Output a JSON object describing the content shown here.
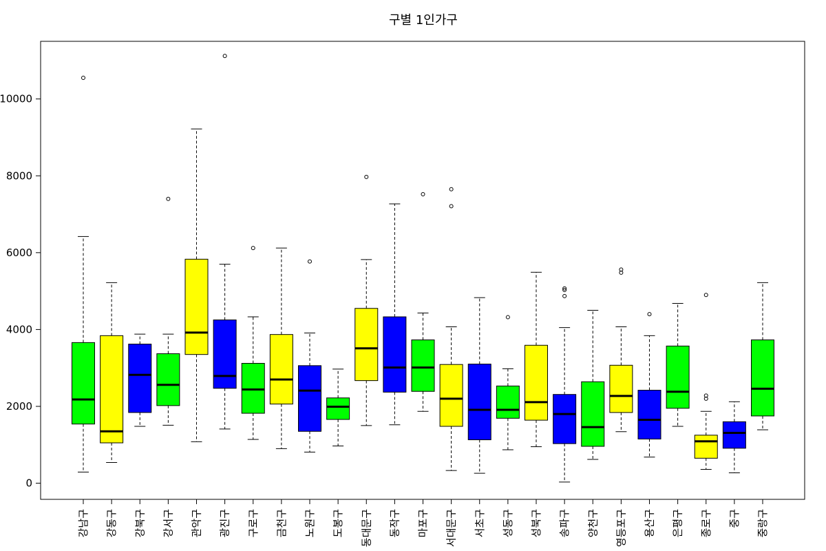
{
  "chart_data": {
    "type": "boxplot",
    "title": "구별 1인가구",
    "xlabel": "",
    "ylabel": "",
    "ylim": [
      -420,
      11500
    ],
    "yticks": [
      0,
      2000,
      4000,
      6000,
      8000,
      10000
    ],
    "grid": false,
    "categories": [
      "강남구",
      "강동구",
      "강북구",
      "강서구",
      "관악구",
      "광진구",
      "구로구",
      "금천구",
      "노원구",
      "도봉구",
      "동대문구",
      "동작구",
      "마포구",
      "서대문구",
      "서초구",
      "성동구",
      "성북구",
      "송파구",
      "양천구",
      "영등포구",
      "용산구",
      "은평구",
      "종로구",
      "중구",
      "중랑구"
    ],
    "colors": [
      "#00ff00",
      "#ffff00",
      "#0000ff"
    ],
    "series": [
      {
        "category": "강남구",
        "whisker_low": 290,
        "q1": 1540,
        "median": 2180,
        "q3": 3660,
        "whisker_high": 6420,
        "outliers": [
          10550
        ]
      },
      {
        "category": "강동구",
        "whisker_low": 540,
        "q1": 1050,
        "median": 1350,
        "q3": 3840,
        "whisker_high": 5220,
        "outliers": []
      },
      {
        "category": "강북구",
        "whisker_low": 1480,
        "q1": 1840,
        "median": 2820,
        "q3": 3620,
        "whisker_high": 3880,
        "outliers": []
      },
      {
        "category": "강서구",
        "whisker_low": 1510,
        "q1": 2020,
        "median": 2560,
        "q3": 3370,
        "whisker_high": 3880,
        "outliers": [
          7400
        ]
      },
      {
        "category": "관악구",
        "whisker_low": 1080,
        "q1": 3350,
        "median": 3920,
        "q3": 5830,
        "whisker_high": 9220,
        "outliers": []
      },
      {
        "category": "광진구",
        "whisker_low": 1410,
        "q1": 2470,
        "median": 2790,
        "q3": 4250,
        "whisker_high": 5700,
        "outliers": [
          11120
        ]
      },
      {
        "category": "구로구",
        "whisker_low": 1140,
        "q1": 1820,
        "median": 2440,
        "q3": 3120,
        "whisker_high": 4330,
        "outliers": [
          6120
        ]
      },
      {
        "category": "금천구",
        "whisker_low": 900,
        "q1": 2060,
        "median": 2700,
        "q3": 3870,
        "whisker_high": 6120,
        "outliers": []
      },
      {
        "category": "노원구",
        "whisker_low": 810,
        "q1": 1350,
        "median": 2410,
        "q3": 3060,
        "whisker_high": 3910,
        "outliers": [
          5770
        ]
      },
      {
        "category": "도봉구",
        "whisker_low": 970,
        "q1": 1660,
        "median": 1990,
        "q3": 2220,
        "whisker_high": 2970,
        "outliers": []
      },
      {
        "category": "동대문구",
        "whisker_low": 1500,
        "q1": 2670,
        "median": 3510,
        "q3": 4550,
        "whisker_high": 5820,
        "outliers": [
          7970
        ]
      },
      {
        "category": "동작구",
        "whisker_low": 1520,
        "q1": 2370,
        "median": 3010,
        "q3": 4330,
        "whisker_high": 7270,
        "outliers": []
      },
      {
        "category": "마포구",
        "whisker_low": 1870,
        "q1": 2390,
        "median": 3010,
        "q3": 3730,
        "whisker_high": 4430,
        "outliers": [
          7520
        ]
      },
      {
        "category": "서대문구",
        "whisker_low": 330,
        "q1": 1480,
        "median": 2200,
        "q3": 3090,
        "whisker_high": 4070,
        "outliers": [
          7210,
          7650
        ]
      },
      {
        "category": "서초구",
        "whisker_low": 260,
        "q1": 1130,
        "median": 1910,
        "q3": 3100,
        "whisker_high": 4830,
        "outliers": []
      },
      {
        "category": "성동구",
        "whisker_low": 870,
        "q1": 1690,
        "median": 1910,
        "q3": 2530,
        "whisker_high": 2980,
        "outliers": [
          4320
        ]
      },
      {
        "category": "성북구",
        "whisker_low": 950,
        "q1": 1640,
        "median": 2110,
        "q3": 3590,
        "whisker_high": 5490,
        "outliers": []
      },
      {
        "category": "송파구",
        "whisker_low": 30,
        "q1": 1030,
        "median": 1800,
        "q3": 2310,
        "whisker_high": 4050,
        "outliers": [
          4870,
          5030,
          5070
        ]
      },
      {
        "category": "양천구",
        "whisker_low": 620,
        "q1": 960,
        "median": 1460,
        "q3": 2640,
        "whisker_high": 4500,
        "outliers": []
      },
      {
        "category": "영등포구",
        "whisker_low": 1340,
        "q1": 1840,
        "median": 2270,
        "q3": 3070,
        "whisker_high": 4070,
        "outliers": [
          5480,
          5560
        ]
      },
      {
        "category": "용산구",
        "whisker_low": 680,
        "q1": 1150,
        "median": 1650,
        "q3": 2420,
        "whisker_high": 3840,
        "outliers": [
          4400
        ]
      },
      {
        "category": "은평구",
        "whisker_low": 1480,
        "q1": 1950,
        "median": 2380,
        "q3": 3570,
        "whisker_high": 4680,
        "outliers": []
      },
      {
        "category": "종로구",
        "whisker_low": 360,
        "q1": 650,
        "median": 1090,
        "q3": 1250,
        "whisker_high": 1870,
        "outliers": [
          2200,
          2280,
          4900
        ]
      },
      {
        "category": "중구",
        "whisker_low": 270,
        "q1": 910,
        "median": 1310,
        "q3": 1600,
        "whisker_high": 2120,
        "outliers": []
      },
      {
        "category": "중랑구",
        "whisker_low": 1390,
        "q1": 1750,
        "median": 2460,
        "q3": 3730,
        "whisker_high": 5220,
        "outliers": []
      }
    ]
  }
}
